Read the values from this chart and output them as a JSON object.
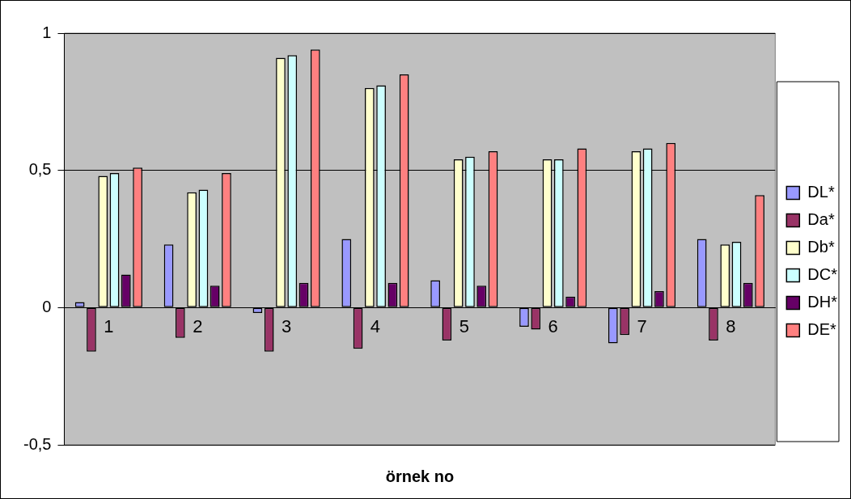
{
  "chart_data": {
    "type": "bar",
    "xlabel": "örnek no",
    "categories": [
      "1",
      "2",
      "3",
      "4",
      "5",
      "6",
      "7",
      "8"
    ],
    "series": [
      {
        "name": "DL*",
        "color": "#9999ff",
        "values": [
          0.02,
          0.23,
          -0.02,
          0.25,
          0.1,
          -0.07,
          -0.13,
          0.25
        ]
      },
      {
        "name": "Da*",
        "color": "#993366",
        "values": [
          -0.16,
          -0.11,
          -0.16,
          -0.15,
          -0.12,
          -0.08,
          -0.1,
          -0.12
        ]
      },
      {
        "name": "Db*",
        "color": "#ffffcc",
        "values": [
          0.48,
          0.42,
          0.91,
          0.8,
          0.54,
          0.54,
          0.57,
          0.23
        ]
      },
      {
        "name": "DC*",
        "color": "#ccffff",
        "values": [
          0.49,
          0.43,
          0.92,
          0.81,
          0.55,
          0.54,
          0.58,
          0.24
        ]
      },
      {
        "name": "DH*",
        "color": "#660066",
        "values": [
          0.12,
          0.08,
          0.09,
          0.09,
          0.08,
          0.04,
          0.06,
          0.09
        ]
      },
      {
        "name": "DE*",
        "color": "#ff8080",
        "values": [
          0.51,
          0.49,
          0.94,
          0.85,
          0.57,
          0.58,
          0.6,
          0.41
        ]
      }
    ],
    "ylim": [
      -0.5,
      1
    ],
    "yticks": [
      {
        "value": -0.5,
        "label": "-0,5"
      },
      0,
      {
        "value": 0.5,
        "label": "0,5"
      },
      1
    ],
    "grid": "y",
    "legend": "right"
  }
}
